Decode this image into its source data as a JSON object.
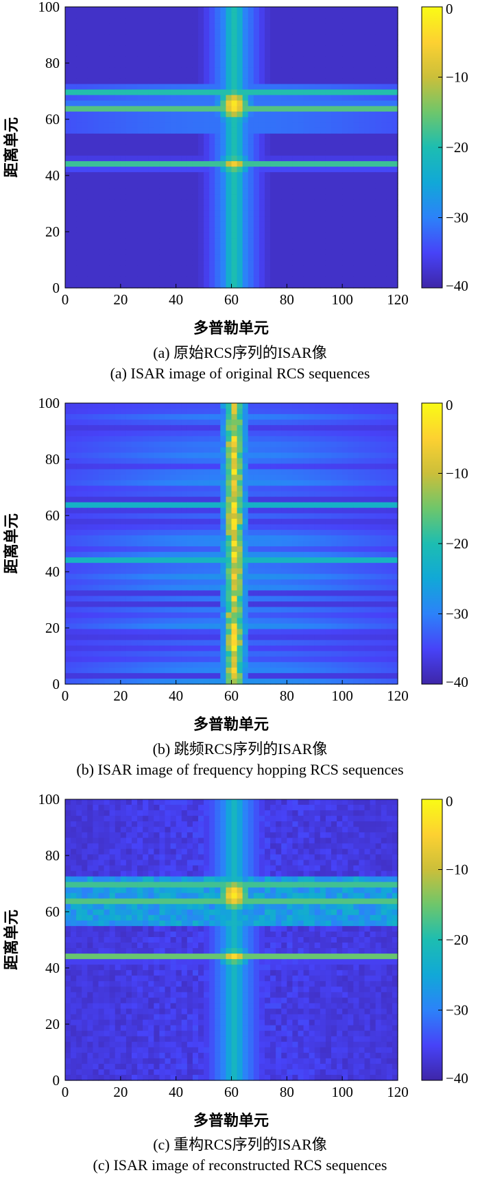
{
  "colormap": {
    "name": "parula",
    "stops": [
      "#3e26a8",
      "#4743f8",
      "#2c82f9",
      "#11a8d7",
      "#1dbdb1",
      "#6ec66b",
      "#cbbf3a",
      "#fdd131",
      "#f9fb15"
    ]
  },
  "chart_data": [
    {
      "type": "heatmap",
      "id": "a",
      "caption_cn": "(a) 原始RCS序列的ISAR像",
      "caption_en": "(a) ISAR image of original RCS sequences",
      "xlabel": "多普勒单元",
      "ylabel": "距离单元",
      "xlim": [
        0,
        120
      ],
      "ylim": [
        0,
        100
      ],
      "xticks": [
        "0",
        "20",
        "40",
        "60",
        "80",
        "100",
        "120"
      ],
      "yticks": [
        "0",
        "20",
        "40",
        "60",
        "80",
        "100"
      ],
      "clim": [
        -40,
        0
      ],
      "colorbar_ticks": [
        "0",
        "−10",
        "−20",
        "−30",
        "−40"
      ],
      "features": {
        "doppler_center": 61,
        "bright_range_rows": [
          70,
          64,
          44
        ],
        "range_band_extent": [
          56,
          72
        ]
      }
    },
    {
      "type": "heatmap",
      "id": "b",
      "caption_cn": "(b) 跳频RCS序列的ISAR像",
      "caption_en": "(b) ISAR image of frequency hopping RCS sequences",
      "xlabel": "多普勒单元",
      "ylabel": "距离单元",
      "xlim": [
        0,
        120
      ],
      "ylim": [
        0,
        100
      ],
      "xticks": [
        "0",
        "20",
        "40",
        "60",
        "80",
        "100",
        "120"
      ],
      "yticks": [
        "0",
        "20",
        "40",
        "60",
        "80",
        "100"
      ],
      "clim": [
        -40,
        0
      ],
      "colorbar_ticks": [
        "0",
        "−10",
        "−20",
        "−30",
        "−40"
      ],
      "features": {
        "doppler_center": 61,
        "bright_range_rows": [
          64,
          44
        ],
        "vertical_band_width": [
          56,
          65
        ]
      }
    },
    {
      "type": "heatmap",
      "id": "c",
      "caption_cn": "(c) 重构RCS序列的ISAR像",
      "caption_en": "(c) ISAR image of reconstructed RCS sequences",
      "xlabel": "多普勒单元",
      "ylabel": "距离单元",
      "xlim": [
        0,
        120
      ],
      "ylim": [
        0,
        100
      ],
      "xticks": [
        "0",
        "20",
        "40",
        "60",
        "80",
        "100",
        "120"
      ],
      "yticks": [
        "0",
        "20",
        "40",
        "60",
        "80",
        "100"
      ],
      "clim": [
        -40,
        0
      ],
      "colorbar_ticks": [
        "0",
        "−10",
        "−20",
        "−30",
        "−40"
      ],
      "features": {
        "doppler_center": 61,
        "bright_range_rows": [
          70,
          64,
          44
        ],
        "range_band_extent": [
          56,
          72
        ]
      }
    }
  ]
}
